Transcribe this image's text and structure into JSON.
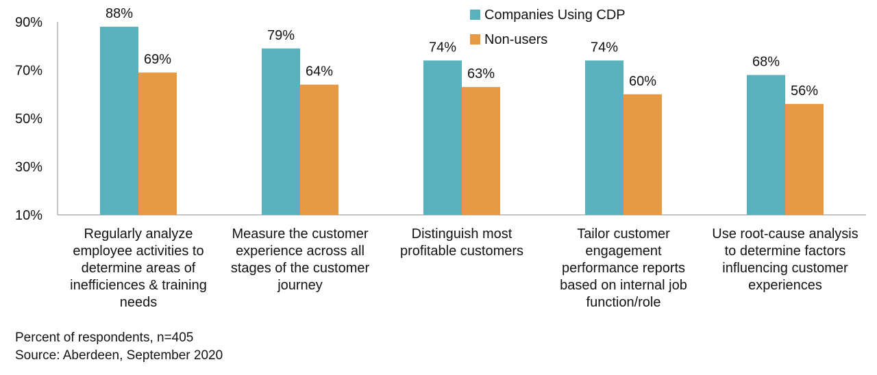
{
  "chart_data": {
    "type": "bar",
    "categories": [
      [
        "Regularly analyze",
        "employee activities to",
        "determine areas of",
        "inefficiences & training",
        "needs"
      ],
      [
        "Measure the customer",
        "experience across all",
        "stages of the customer",
        "journey"
      ],
      [
        "Distinguish most",
        "profitable customers"
      ],
      [
        "Tailor customer",
        "engagement",
        "performance reports",
        "based on internal job",
        "function/role"
      ],
      [
        "Use root-cause analysis",
        "to determine factors",
        "influencing customer",
        "experiences"
      ]
    ],
    "series": [
      {
        "name": "Companies Using CDP",
        "color": "#58b1bc",
        "values": [
          88,
          79,
          74,
          74,
          68
        ],
        "labels": [
          "88%",
          "79%",
          "74%",
          "74%",
          "68%"
        ]
      },
      {
        "name": "Non-users",
        "color": "#e69a43",
        "values": [
          69,
          64,
          63,
          60,
          56
        ],
        "labels": [
          "69%",
          "64%",
          "63%",
          "60%",
          "56%"
        ]
      }
    ],
    "ylim": [
      10,
      90
    ],
    "yticks": [
      10,
      30,
      50,
      70,
      90
    ],
    "ytick_labels": [
      "10%",
      "30%",
      "50%",
      "70%",
      "90%"
    ],
    "legend_position": "top-center",
    "grid": false,
    "title": "",
    "xlabel": "",
    "ylabel": ""
  },
  "footer": {
    "note": "Percent of respondents, n=405",
    "source": "Source: Aberdeen, September 2020"
  }
}
